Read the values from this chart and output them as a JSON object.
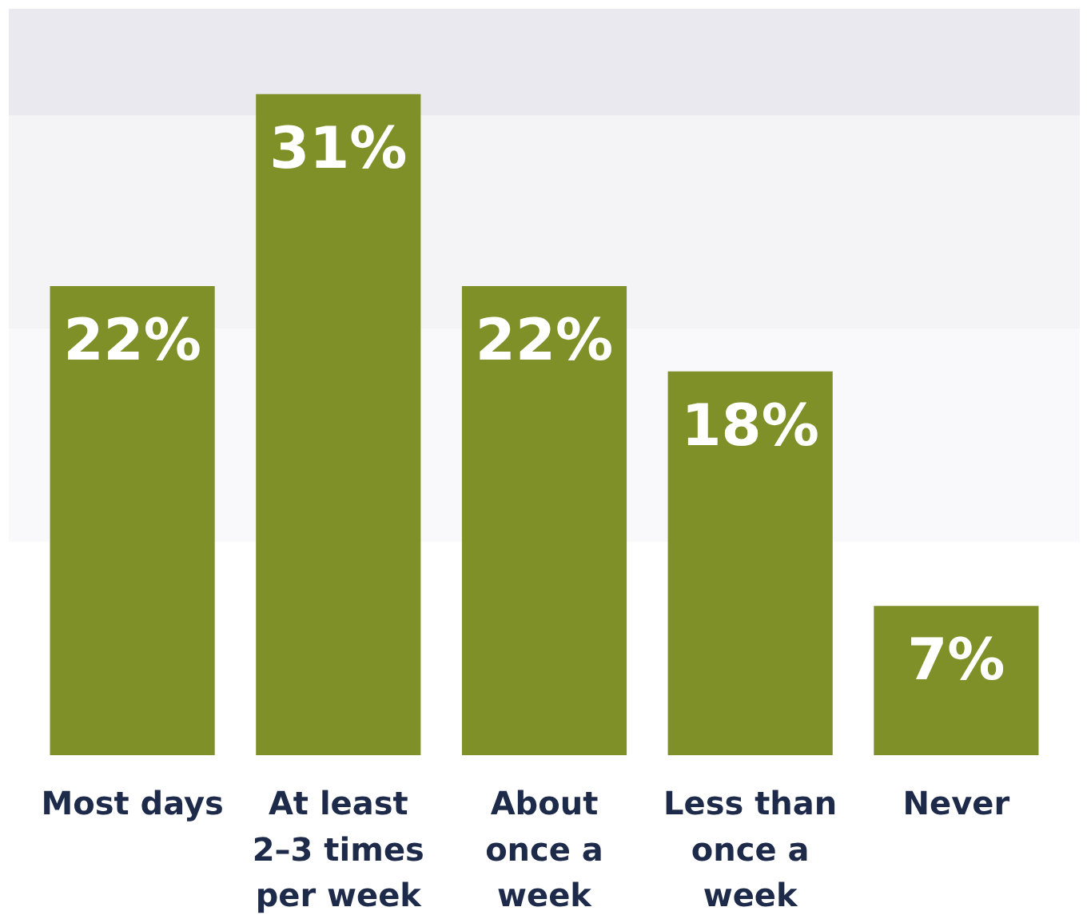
{
  "chart_data": {
    "type": "bar",
    "categories": [
      "Most days",
      "At least\n2–3 times\nper week",
      "About\nonce a\nweek",
      "Less than\nonce a\nweek",
      "Never"
    ],
    "values": [
      22,
      31,
      22,
      18,
      7
    ],
    "value_labels": [
      "22%",
      "31%",
      "22%",
      "18%",
      "7%"
    ],
    "color": "#7f9028",
    "ylim": [
      0,
      35
    ],
    "grid": false,
    "bands": [
      {
        "axis": "y",
        "from": 10,
        "to": 20,
        "color": "#f9f9fb"
      },
      {
        "axis": "y",
        "from": 20,
        "to": 30,
        "color": "#f4f4f7"
      },
      {
        "axis": "y",
        "from": 30,
        "to": 35,
        "color": "#e9e9ef"
      }
    ]
  }
}
